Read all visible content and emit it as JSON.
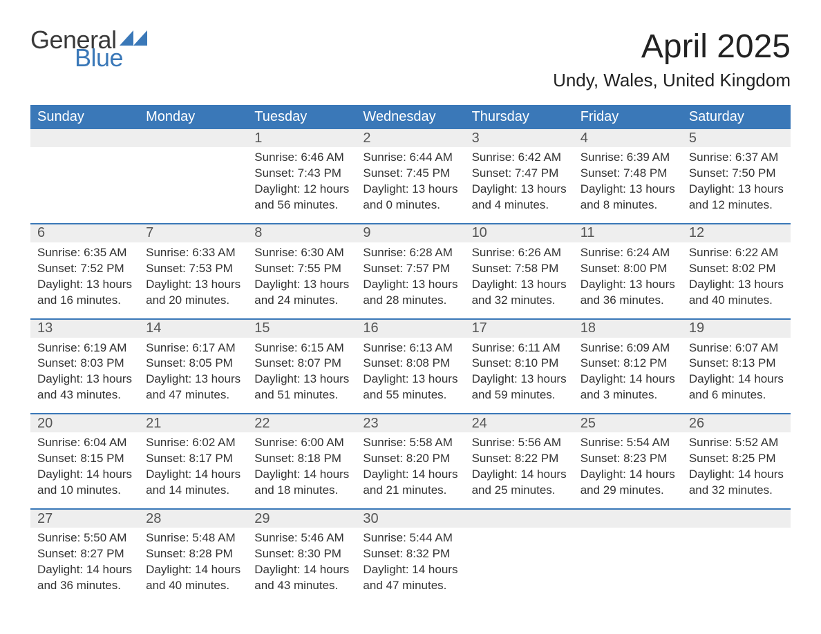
{
  "brand": {
    "word1": "General",
    "word2": "Blue",
    "tri_color": "#3a78b8"
  },
  "title": "April 2025",
  "location": "Undy, Wales, United Kingdom",
  "colors": {
    "header_bg": "#3a78b8",
    "header_text": "#ffffff",
    "daynum_bg": "#eeeeee",
    "week_border": "#3a78b8",
    "body_text": "#333333",
    "page_bg": "#ffffff"
  },
  "dow": [
    "Sunday",
    "Monday",
    "Tuesday",
    "Wednesday",
    "Thursday",
    "Friday",
    "Saturday"
  ],
  "labels": {
    "sunrise_prefix": "Sunrise: ",
    "sunset_prefix": "Sunset: ",
    "daylight_prefix": "Daylight: ",
    "and_word": " and ",
    "hours_word": " hours",
    "minutes_word": " minutes."
  },
  "weeks": [
    [
      null,
      null,
      {
        "n": "1",
        "sunrise": "6:46 AM",
        "sunset": "7:43 PM",
        "dl_h": "12",
        "dl_m": "56"
      },
      {
        "n": "2",
        "sunrise": "6:44 AM",
        "sunset": "7:45 PM",
        "dl_h": "13",
        "dl_m": "0"
      },
      {
        "n": "3",
        "sunrise": "6:42 AM",
        "sunset": "7:47 PM",
        "dl_h": "13",
        "dl_m": "4"
      },
      {
        "n": "4",
        "sunrise": "6:39 AM",
        "sunset": "7:48 PM",
        "dl_h": "13",
        "dl_m": "8"
      },
      {
        "n": "5",
        "sunrise": "6:37 AM",
        "sunset": "7:50 PM",
        "dl_h": "13",
        "dl_m": "12"
      }
    ],
    [
      {
        "n": "6",
        "sunrise": "6:35 AM",
        "sunset": "7:52 PM",
        "dl_h": "13",
        "dl_m": "16"
      },
      {
        "n": "7",
        "sunrise": "6:33 AM",
        "sunset": "7:53 PM",
        "dl_h": "13",
        "dl_m": "20"
      },
      {
        "n": "8",
        "sunrise": "6:30 AM",
        "sunset": "7:55 PM",
        "dl_h": "13",
        "dl_m": "24"
      },
      {
        "n": "9",
        "sunrise": "6:28 AM",
        "sunset": "7:57 PM",
        "dl_h": "13",
        "dl_m": "28"
      },
      {
        "n": "10",
        "sunrise": "6:26 AM",
        "sunset": "7:58 PM",
        "dl_h": "13",
        "dl_m": "32"
      },
      {
        "n": "11",
        "sunrise": "6:24 AM",
        "sunset": "8:00 PM",
        "dl_h": "13",
        "dl_m": "36"
      },
      {
        "n": "12",
        "sunrise": "6:22 AM",
        "sunset": "8:02 PM",
        "dl_h": "13",
        "dl_m": "40"
      }
    ],
    [
      {
        "n": "13",
        "sunrise": "6:19 AM",
        "sunset": "8:03 PM",
        "dl_h": "13",
        "dl_m": "43"
      },
      {
        "n": "14",
        "sunrise": "6:17 AM",
        "sunset": "8:05 PM",
        "dl_h": "13",
        "dl_m": "47"
      },
      {
        "n": "15",
        "sunrise": "6:15 AM",
        "sunset": "8:07 PM",
        "dl_h": "13",
        "dl_m": "51"
      },
      {
        "n": "16",
        "sunrise": "6:13 AM",
        "sunset": "8:08 PM",
        "dl_h": "13",
        "dl_m": "55"
      },
      {
        "n": "17",
        "sunrise": "6:11 AM",
        "sunset": "8:10 PM",
        "dl_h": "13",
        "dl_m": "59"
      },
      {
        "n": "18",
        "sunrise": "6:09 AM",
        "sunset": "8:12 PM",
        "dl_h": "14",
        "dl_m": "3"
      },
      {
        "n": "19",
        "sunrise": "6:07 AM",
        "sunset": "8:13 PM",
        "dl_h": "14",
        "dl_m": "6"
      }
    ],
    [
      {
        "n": "20",
        "sunrise": "6:04 AM",
        "sunset": "8:15 PM",
        "dl_h": "14",
        "dl_m": "10"
      },
      {
        "n": "21",
        "sunrise": "6:02 AM",
        "sunset": "8:17 PM",
        "dl_h": "14",
        "dl_m": "14"
      },
      {
        "n": "22",
        "sunrise": "6:00 AM",
        "sunset": "8:18 PM",
        "dl_h": "14",
        "dl_m": "18"
      },
      {
        "n": "23",
        "sunrise": "5:58 AM",
        "sunset": "8:20 PM",
        "dl_h": "14",
        "dl_m": "21"
      },
      {
        "n": "24",
        "sunrise": "5:56 AM",
        "sunset": "8:22 PM",
        "dl_h": "14",
        "dl_m": "25"
      },
      {
        "n": "25",
        "sunrise": "5:54 AM",
        "sunset": "8:23 PM",
        "dl_h": "14",
        "dl_m": "29"
      },
      {
        "n": "26",
        "sunrise": "5:52 AM",
        "sunset": "8:25 PM",
        "dl_h": "14",
        "dl_m": "32"
      }
    ],
    [
      {
        "n": "27",
        "sunrise": "5:50 AM",
        "sunset": "8:27 PM",
        "dl_h": "14",
        "dl_m": "36"
      },
      {
        "n": "28",
        "sunrise": "5:48 AM",
        "sunset": "8:28 PM",
        "dl_h": "14",
        "dl_m": "40"
      },
      {
        "n": "29",
        "sunrise": "5:46 AM",
        "sunset": "8:30 PM",
        "dl_h": "14",
        "dl_m": "43"
      },
      {
        "n": "30",
        "sunrise": "5:44 AM",
        "sunset": "8:32 PM",
        "dl_h": "14",
        "dl_m": "47"
      },
      null,
      null,
      null
    ]
  ]
}
